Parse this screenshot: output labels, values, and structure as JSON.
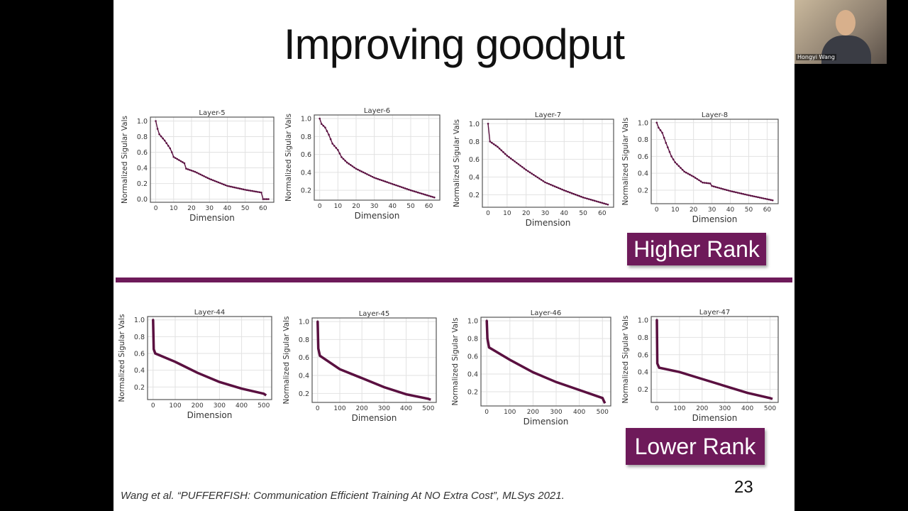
{
  "slide": {
    "title": "Improving goodput",
    "higher_label": "Higher Rank",
    "lower_label": "Lower Rank",
    "citation": "Wang et al. “PUFFERFISH: Communication Efficient Training At NO Extra Cost”, MLSys 2021.",
    "page_number": "23"
  },
  "webcam": {
    "participant_name": "Hongyi Wang"
  },
  "colors": {
    "accent": "#6e1a5a",
    "line": "#5a1040"
  },
  "chart_data": [
    {
      "type": "line",
      "title": "Layer-5",
      "xlabel": "Dimension",
      "ylabel": "Normalized Sigular Vals",
      "xticks": [
        0,
        10,
        20,
        30,
        40,
        50,
        60
      ],
      "yticks": [
        0.0,
        0.2,
        0.4,
        0.6,
        0.8,
        1.0
      ],
      "xlim": [
        -3,
        66
      ],
      "ylim": [
        -0.04,
        1.05
      ],
      "grid": true,
      "points": [
        [
          0,
          1
        ],
        [
          1,
          0.9
        ],
        [
          2,
          0.83
        ],
        [
          5,
          0.75
        ],
        [
          8,
          0.65
        ],
        [
          9,
          0.6
        ],
        [
          10,
          0.54
        ],
        [
          16,
          0.46
        ],
        [
          17,
          0.39
        ],
        [
          22,
          0.35
        ],
        [
          30,
          0.26
        ],
        [
          40,
          0.17
        ],
        [
          50,
          0.12
        ],
        [
          59,
          0.085
        ],
        [
          60,
          0
        ],
        [
          63,
          0
        ]
      ]
    },
    {
      "type": "line",
      "title": "Layer-6",
      "xlabel": "Dimension",
      "ylabel": "Normalized Sigular Vals",
      "xticks": [
        0,
        10,
        20,
        30,
        40,
        50,
        60
      ],
      "yticks": [
        0.2,
        0.4,
        0.6,
        0.8,
        1.0
      ],
      "xlim": [
        -3,
        66
      ],
      "ylim": [
        0.09,
        1.04
      ],
      "grid": true,
      "points": [
        [
          0,
          1
        ],
        [
          1,
          0.94
        ],
        [
          3,
          0.9
        ],
        [
          5,
          0.82
        ],
        [
          7,
          0.72
        ],
        [
          10,
          0.65
        ],
        [
          12,
          0.57
        ],
        [
          15,
          0.51
        ],
        [
          20,
          0.44
        ],
        [
          30,
          0.34
        ],
        [
          40,
          0.27
        ],
        [
          50,
          0.2
        ],
        [
          63,
          0.12
        ]
      ]
    },
    {
      "type": "line",
      "title": "Layer-7",
      "xlabel": "Dimension",
      "ylabel": "Normalized Sigular Vals",
      "xticks": [
        0,
        10,
        20,
        30,
        40,
        50,
        60
      ],
      "yticks": [
        0.2,
        0.4,
        0.6,
        0.8,
        1.0
      ],
      "xlim": [
        -3,
        66
      ],
      "ylim": [
        0.06,
        1.05
      ],
      "grid": true,
      "points": [
        [
          0,
          1
        ],
        [
          1,
          0.8
        ],
        [
          5,
          0.74
        ],
        [
          10,
          0.64
        ],
        [
          20,
          0.48
        ],
        [
          30,
          0.34
        ],
        [
          40,
          0.25
        ],
        [
          50,
          0.17
        ],
        [
          63,
          0.09
        ]
      ]
    },
    {
      "type": "line",
      "title": "Layer-8",
      "xlabel": "Dimension",
      "ylabel": "Normalized Sigular Vals",
      "xticks": [
        0,
        10,
        20,
        30,
        40,
        50,
        60
      ],
      "yticks": [
        0.2,
        0.4,
        0.6,
        0.8,
        1.0
      ],
      "xlim": [
        -3,
        66
      ],
      "ylim": [
        0.04,
        1.04
      ],
      "grid": true,
      "points": [
        [
          0,
          1
        ],
        [
          1,
          0.94
        ],
        [
          3,
          0.88
        ],
        [
          5,
          0.76
        ],
        [
          8,
          0.6
        ],
        [
          10,
          0.53
        ],
        [
          15,
          0.42
        ],
        [
          20,
          0.36
        ],
        [
          25,
          0.29
        ],
        [
          29,
          0.28
        ],
        [
          30,
          0.25
        ],
        [
          40,
          0.19
        ],
        [
          50,
          0.14
        ],
        [
          63,
          0.08
        ]
      ]
    },
    {
      "type": "line",
      "title": "Layer-44",
      "xlabel": "Dimension",
      "ylabel": "Normalized Sigular Vals",
      "xticks": [
        0,
        100,
        200,
        300,
        400,
        500
      ],
      "yticks": [
        0.2,
        0.4,
        0.6,
        0.8,
        1.0
      ],
      "xlim": [
        -25,
        536
      ],
      "ylim": [
        0.05,
        1.04
      ],
      "grid": true,
      "points": [
        [
          0,
          1
        ],
        [
          3,
          0.65
        ],
        [
          10,
          0.6
        ],
        [
          100,
          0.5
        ],
        [
          200,
          0.37
        ],
        [
          300,
          0.26
        ],
        [
          400,
          0.18
        ],
        [
          500,
          0.12
        ],
        [
          511,
          0.1
        ]
      ]
    },
    {
      "type": "line",
      "title": "Layer-45",
      "xlabel": "Dimension",
      "ylabel": "Normalized Sigular Vals",
      "xticks": [
        0,
        100,
        200,
        300,
        400,
        500
      ],
      "yticks": [
        0.2,
        0.4,
        0.6,
        0.8,
        1.0
      ],
      "xlim": [
        -25,
        536
      ],
      "ylim": [
        0.1,
        1.04
      ],
      "grid": true,
      "points": [
        [
          0,
          1
        ],
        [
          3,
          0.7
        ],
        [
          10,
          0.62
        ],
        [
          100,
          0.47
        ],
        [
          200,
          0.37
        ],
        [
          300,
          0.27
        ],
        [
          400,
          0.19
        ],
        [
          500,
          0.14
        ],
        [
          511,
          0.13
        ]
      ]
    },
    {
      "type": "line",
      "title": "Layer-46",
      "xlabel": "Dimension",
      "ylabel": "Normalized Sigular Vals",
      "xticks": [
        0,
        100,
        200,
        300,
        400,
        500
      ],
      "yticks": [
        0.2,
        0.4,
        0.6,
        0.8,
        1.0
      ],
      "xlim": [
        -25,
        536
      ],
      "ylim": [
        0.04,
        1.04
      ],
      "grid": true,
      "points": [
        [
          0,
          1
        ],
        [
          3,
          0.8
        ],
        [
          10,
          0.7
        ],
        [
          100,
          0.56
        ],
        [
          200,
          0.42
        ],
        [
          300,
          0.31
        ],
        [
          400,
          0.22
        ],
        [
          500,
          0.13
        ],
        [
          511,
          0.07
        ]
      ]
    },
    {
      "type": "line",
      "title": "Layer-47",
      "xlabel": "Dimension",
      "ylabel": "Normalized Sigular Vals",
      "xticks": [
        0,
        100,
        200,
        300,
        400,
        500
      ],
      "yticks": [
        0.2,
        0.4,
        0.6,
        0.8,
        1.0
      ],
      "xlim": [
        -25,
        536
      ],
      "ylim": [
        0.05,
        1.04
      ],
      "grid": true,
      "points": [
        [
          0,
          1
        ],
        [
          2,
          0.5
        ],
        [
          10,
          0.45
        ],
        [
          100,
          0.4
        ],
        [
          200,
          0.32
        ],
        [
          300,
          0.24
        ],
        [
          400,
          0.16
        ],
        [
          500,
          0.1
        ],
        [
          511,
          0.09
        ]
      ]
    }
  ]
}
